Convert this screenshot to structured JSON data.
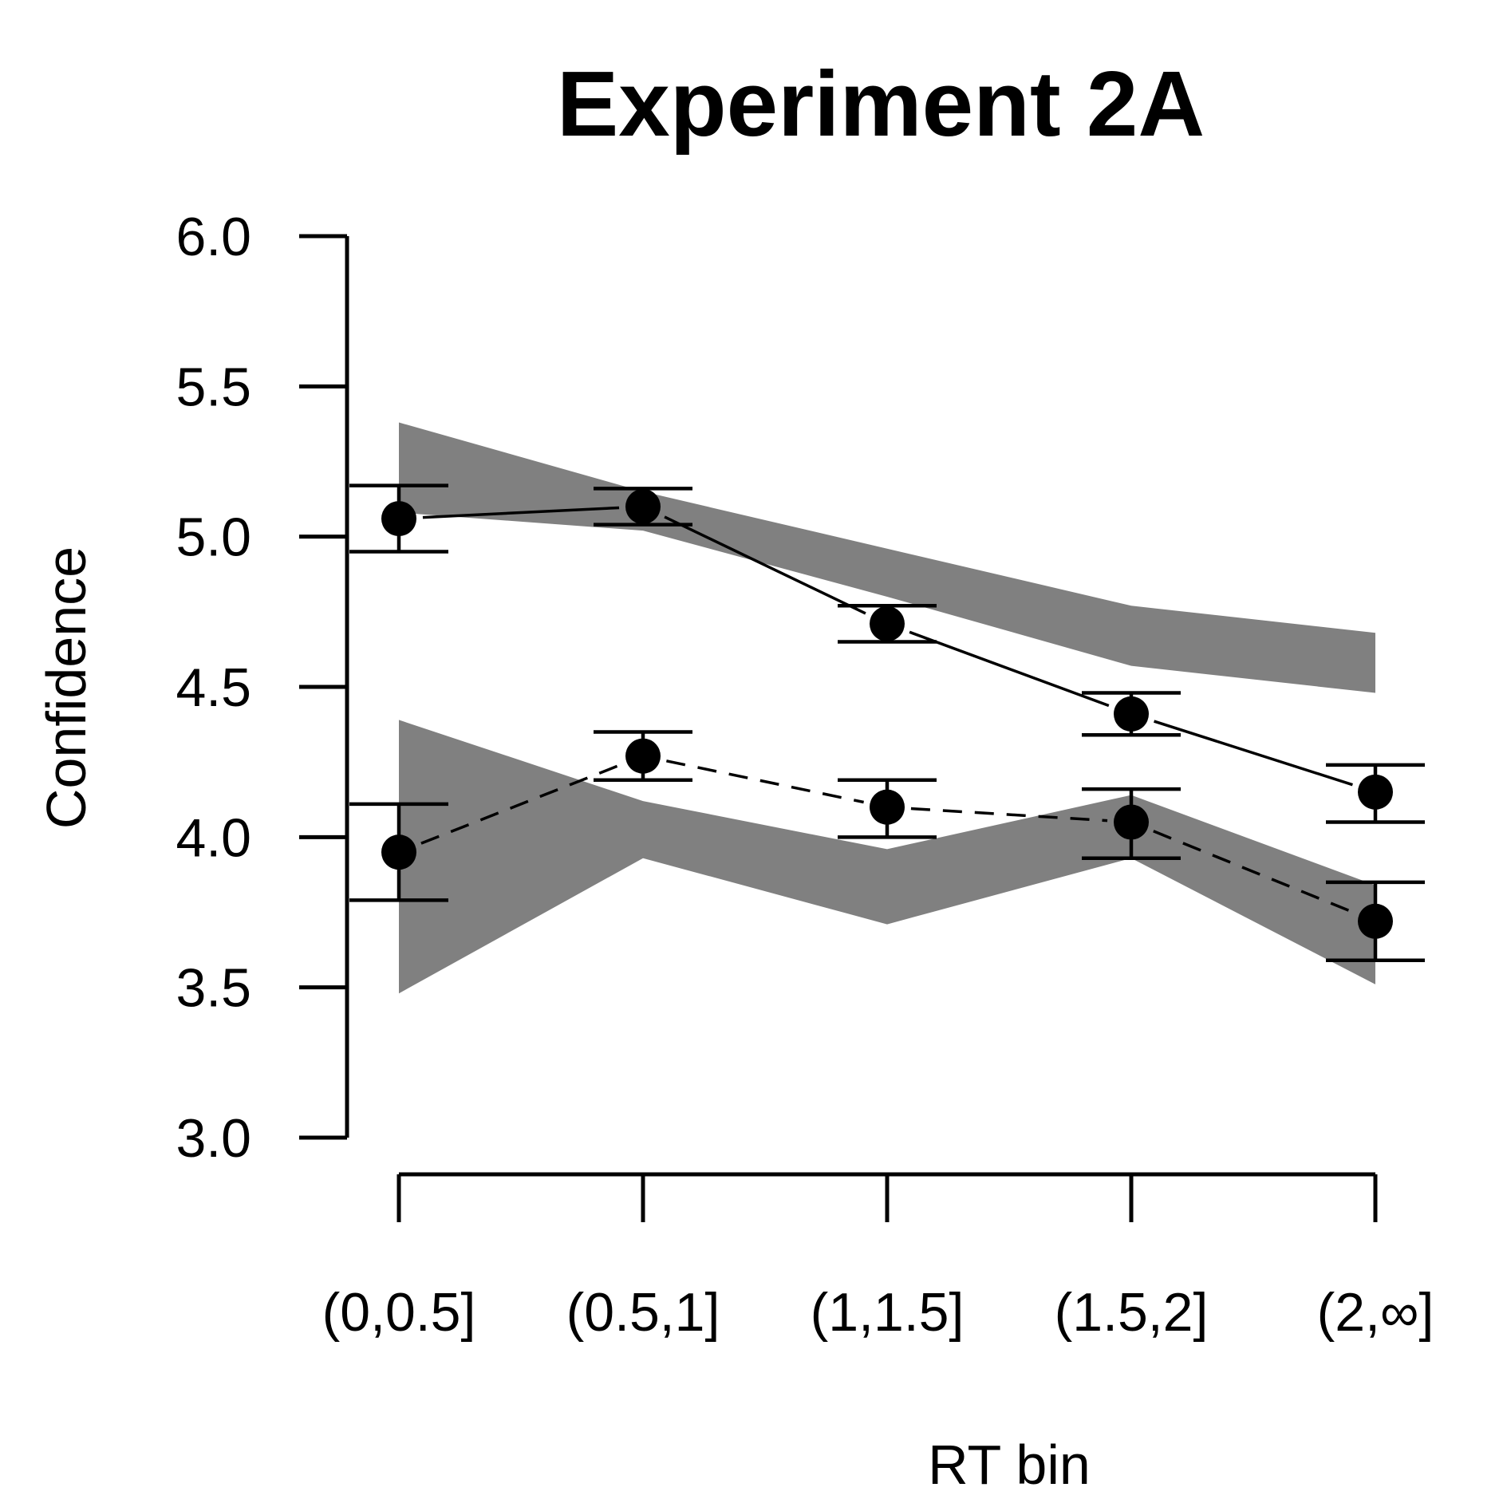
{
  "chart_data": {
    "type": "line",
    "title": "Experiment 2A",
    "xlabel": "RT bin",
    "ylabel": "Confidence",
    "categories": [
      "(0,0.5]",
      "(0.5,1]",
      "(1,1.5]",
      "(1.5,2]",
      "(2,∞]"
    ],
    "ylim": [
      3.0,
      6.0
    ],
    "yticks": [
      "3.0",
      "3.5",
      "4.0",
      "4.5",
      "5.0",
      "5.5",
      "6.0"
    ],
    "grid": false,
    "legend": "none",
    "band_color": "#808080",
    "series": [
      {
        "line_style": "solid",
        "values": [
          5.06,
          5.1,
          4.71,
          4.41,
          4.15
        ],
        "error_low": [
          4.95,
          5.04,
          4.65,
          4.34,
          4.05
        ],
        "error_high": [
          5.17,
          5.16,
          4.77,
          4.48,
          4.24
        ],
        "band_low": [
          5.08,
          5.02,
          4.8,
          4.57,
          4.48
        ],
        "band_high": [
          5.38,
          5.15,
          4.96,
          4.77,
          4.68
        ]
      },
      {
        "line_style": "dashed",
        "values": [
          3.95,
          4.27,
          4.1,
          4.05,
          3.72
        ],
        "error_low": [
          3.79,
          4.19,
          4.0,
          3.93,
          3.59
        ],
        "error_high": [
          4.11,
          4.35,
          4.19,
          4.16,
          3.85
        ],
        "band_low": [
          3.48,
          3.93,
          3.71,
          3.93,
          3.51
        ],
        "band_high": [
          4.39,
          4.12,
          3.96,
          4.14,
          3.84
        ]
      }
    ]
  }
}
